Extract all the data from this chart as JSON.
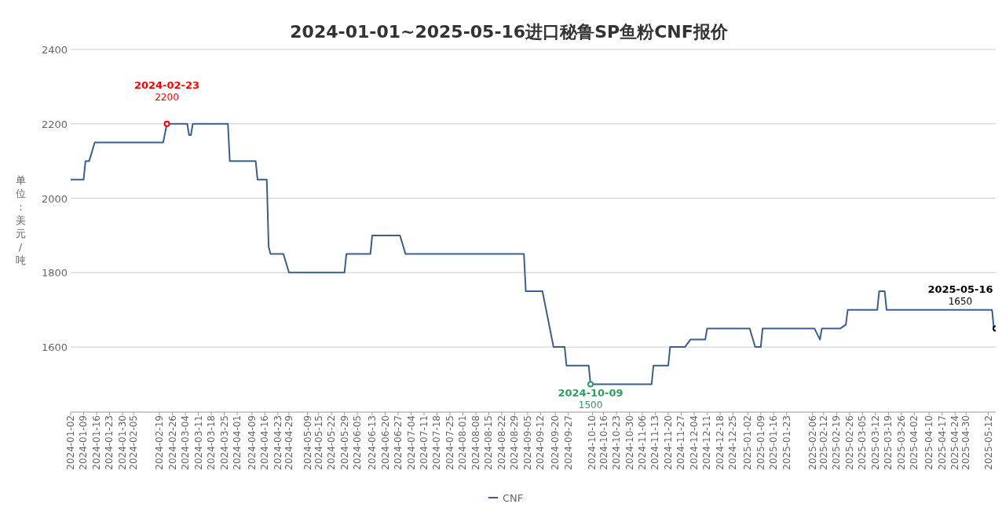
{
  "chart_data": {
    "type": "line",
    "title": "2024-01-01~2025-05-16进口秘鲁SP鱼粉CNF报价",
    "ylabel": "单位：美元/吨",
    "xlim": [
      "2024-01-02",
      "2025-05-16"
    ],
    "xticks": [
      "2024-01-02",
      "2024-01-09",
      "2024-01-16",
      "2024-01-23",
      "2024-01-30",
      "2024-02-05",
      "2024-02-19",
      "2024-02-26",
      "2024-03-04",
      "2024-03-11",
      "2024-03-18",
      "2024-03-25",
      "2024-04-01",
      "2024-04-09",
      "2024-04-16",
      "2024-04-23",
      "2024-04-29",
      "2024-05-09",
      "2024-05-15",
      "2024-05-22",
      "2024-05-29",
      "2024-06-05",
      "2024-06-13",
      "2024-06-20",
      "2024-06-27",
      "2024-07-04",
      "2024-07-11",
      "2024-07-18",
      "2024-07-25",
      "2024-08-01",
      "2024-08-08",
      "2024-08-15",
      "2024-08-22",
      "2024-08-29",
      "2024-09-05",
      "2024-09-12",
      "2024-09-20",
      "2024-09-27",
      "2024-10-10",
      "2024-10-16",
      "2024-10-23",
      "2024-10-30",
      "2024-11-06",
      "2024-11-13",
      "2024-11-20",
      "2024-11-27",
      "2024-12-04",
      "2024-12-11",
      "2024-12-18",
      "2024-12-25",
      "2025-01-02",
      "2025-01-09",
      "2025-01-16",
      "2025-01-23",
      "2025-02-06",
      "2025-02-12",
      "2025-02-19",
      "2025-02-26",
      "2025-03-05",
      "2025-03-12",
      "2025-03-19",
      "2025-03-26",
      "2025-04-02",
      "2025-04-10",
      "2025-04-17",
      "2025-04-24",
      "2025-04-30",
      "2025-05-12"
    ],
    "ylim": [
      1425,
      2400
    ],
    "yticks": [
      1600,
      1800,
      2000,
      2200,
      2400
    ],
    "grid": "y",
    "legend": "bottom",
    "marker": "none",
    "line_style": "solid",
    "x": [
      "2024-01-02",
      "2024-01-09",
      "2024-01-10",
      "2024-01-12",
      "2024-01-15",
      "2024-02-21",
      "2024-02-23",
      "2024-03-05",
      "2024-03-06",
      "2024-03-07",
      "2024-03-08",
      "2024-03-27",
      "2024-03-28",
      "2024-04-11",
      "2024-04-12",
      "2024-04-17",
      "2024-04-18",
      "2024-04-19",
      "2024-04-26",
      "2024-04-29",
      "2024-05-29",
      "2024-05-30",
      "2024-06-12",
      "2024-06-13",
      "2024-06-28",
      "2024-07-01",
      "2024-09-03",
      "2024-09-04",
      "2024-09-13",
      "2024-09-19",
      "2024-09-25",
      "2024-09-26",
      "2024-10-08",
      "2024-10-09",
      "2024-11-11",
      "2024-11-12",
      "2024-11-20",
      "2024-11-21",
      "2024-11-29",
      "2024-12-02",
      "2024-12-10",
      "2024-12-11",
      "2025-01-03",
      "2025-01-06",
      "2025-01-09",
      "2025-01-10",
      "2025-02-07",
      "2025-02-10",
      "2025-02-11",
      "2025-02-21",
      "2025-02-24",
      "2025-02-25",
      "2025-03-13",
      "2025-03-14",
      "2025-03-17",
      "2025-03-18",
      "2025-05-14",
      "2025-05-15",
      "2025-05-16"
    ],
    "series": [
      {
        "name": "CNF",
        "color": "#3a5f8f",
        "values": [
          2050,
          2050,
          2100,
          2100,
          2150,
          2150,
          2200,
          2200,
          2170,
          2170,
          2200,
          2200,
          2100,
          2100,
          2050,
          2050,
          1870,
          1850,
          1850,
          1800,
          1800,
          1850,
          1850,
          1900,
          1900,
          1850,
          1850,
          1750,
          1750,
          1600,
          1600,
          1550,
          1550,
          1500,
          1500,
          1550,
          1550,
          1600,
          1600,
          1620,
          1620,
          1650,
          1650,
          1600,
          1600,
          1650,
          1650,
          1620,
          1650,
          1650,
          1660,
          1700,
          1700,
          1750,
          1750,
          1700,
          1700,
          1650,
          1650
        ]
      }
    ],
    "annotations": [
      {
        "text": "2024-02-23\n2200",
        "x": "2024-02-23",
        "y": 2200
      },
      {
        "text": "2024-10-09\n1500",
        "x": "2024-10-09",
        "y": 1500
      },
      {
        "text": "2025-05-16\n1650",
        "x": "2025-05-16",
        "y": 1650
      }
    ]
  }
}
